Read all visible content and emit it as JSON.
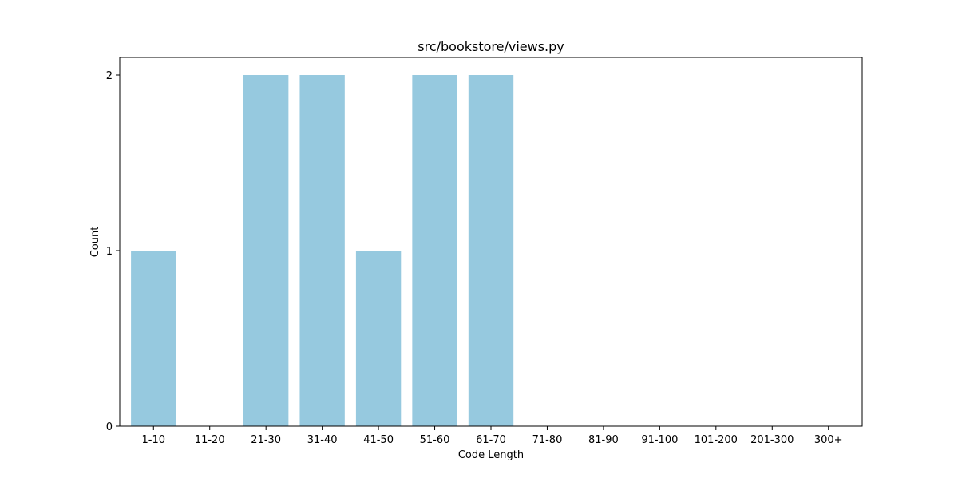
{
  "chart_data": {
    "type": "bar",
    "title": "src/bookstore/views.py",
    "xlabel": "Code Length",
    "ylabel": "Count",
    "categories": [
      "1-10",
      "11-20",
      "21-30",
      "31-40",
      "41-50",
      "51-60",
      "61-70",
      "71-80",
      "81-90",
      "91-100",
      "101-200",
      "201-300",
      "300+"
    ],
    "values": [
      1,
      0,
      2,
      2,
      1,
      2,
      2,
      0,
      0,
      0,
      0,
      0,
      0
    ],
    "ylim": [
      0,
      2.1
    ],
    "yticks": [
      0,
      1,
      2
    ],
    "grid": false,
    "legend": "none",
    "bar_color": "#96c9df"
  }
}
